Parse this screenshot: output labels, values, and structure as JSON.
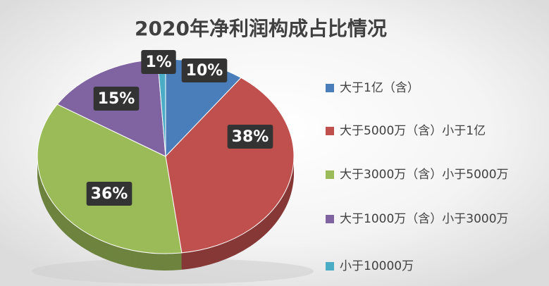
{
  "chart_data": {
    "type": "pie",
    "title": "2020年净利润构成占比情况",
    "categories": [
      "大于1亿（含）",
      "大于5000万（含）小于1亿",
      "大于3000万（含）小于5000万",
      "大于1000万（含）小于3000万",
      "小于10000万"
    ],
    "values": [
      10,
      38,
      36,
      15,
      1
    ],
    "value_labels": [
      "10%",
      "38%",
      "36%",
      "15%",
      "1%"
    ],
    "colors": [
      "#4a7ebb",
      "#c0504d",
      "#9bbb59",
      "#8064a2",
      "#4bacc6"
    ]
  }
}
